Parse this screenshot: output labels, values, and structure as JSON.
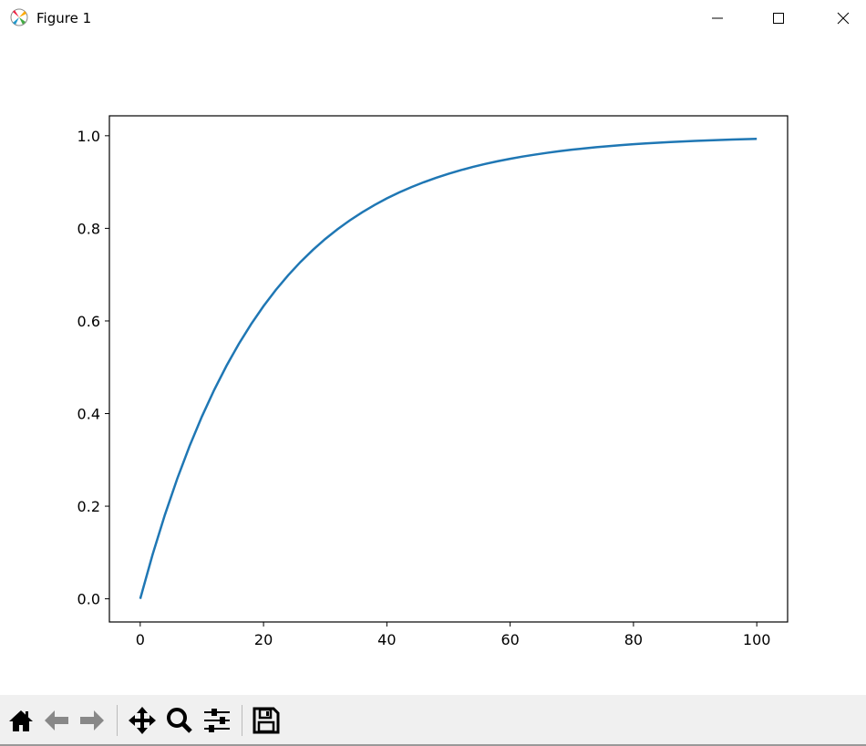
{
  "window": {
    "title": "Figure 1",
    "controls": [
      "minimize",
      "maximize",
      "close"
    ]
  },
  "toolbar": {
    "buttons": [
      {
        "name": "home-icon"
      },
      {
        "name": "back-arrow-icon"
      },
      {
        "name": "forward-arrow-icon"
      },
      {
        "name": "pan-move-icon"
      },
      {
        "name": "zoom-magnifier-icon"
      },
      {
        "name": "configure-subplots-icon"
      },
      {
        "name": "save-floppy-icon"
      }
    ]
  },
  "chart_data": {
    "type": "line",
    "title": "",
    "xlabel": "",
    "ylabel": "",
    "xlim": [
      -5,
      105
    ],
    "ylim": [
      -0.05,
      1.043
    ],
    "grid": false,
    "xticks": [
      0,
      20,
      40,
      60,
      80,
      100
    ],
    "xtick_labels": [
      "0",
      "20",
      "40",
      "60",
      "80",
      "100"
    ],
    "yticks": [
      0,
      0.2,
      0.4,
      0.6,
      0.8,
      1.0
    ],
    "ytick_labels": [
      "0.0",
      "0.2",
      "0.4",
      "0.6",
      "0.8",
      "1.0"
    ],
    "series": [
      {
        "color": "#1f77b4",
        "x": [
          0,
          2,
          4,
          6,
          8,
          10,
          12,
          14,
          16,
          18,
          20,
          22,
          24,
          26,
          28,
          30,
          32,
          34,
          36,
          38,
          40,
          42,
          44,
          46,
          48,
          50,
          52,
          54,
          56,
          58,
          60,
          62,
          64,
          66,
          68,
          70,
          72,
          74,
          76,
          78,
          80,
          82,
          84,
          86,
          88,
          90,
          92,
          94,
          96,
          98,
          100
        ],
        "y": [
          0,
          0.0952,
          0.1813,
          0.2592,
          0.3297,
          0.3935,
          0.4512,
          0.5034,
          0.5507,
          0.5934,
          0.6321,
          0.6671,
          0.6988,
          0.7275,
          0.7534,
          0.7769,
          0.7981,
          0.8173,
          0.8347,
          0.8504,
          0.8647,
          0.8775,
          0.8892,
          0.8997,
          0.9093,
          0.9179,
          0.9257,
          0.9328,
          0.9392,
          0.945,
          0.9502,
          0.955,
          0.9592,
          0.9631,
          0.9666,
          0.9698,
          0.9727,
          0.9753,
          0.9776,
          0.9798,
          0.9817,
          0.9834,
          0.985,
          0.9864,
          0.9877,
          0.9889,
          0.9899,
          0.9909,
          0.9918,
          0.9926,
          0.9933
        ]
      }
    ]
  }
}
